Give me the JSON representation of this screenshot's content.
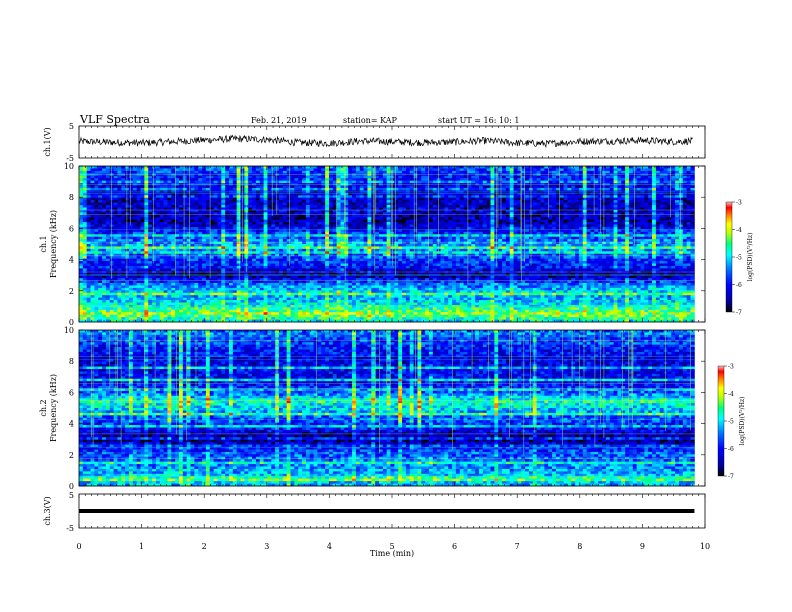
{
  "header": {
    "title": "VLF Spectra",
    "date": "Feb. 21, 2019",
    "station": "station= KAP",
    "start": "start  UT =   16: 10: 1"
  },
  "chart_data": [
    {
      "type": "line",
      "panel": "ch1-waveform",
      "ylabel": "ch.1(V)",
      "ylim": [
        -5,
        5
      ],
      "yticks": [
        "5",
        "-5"
      ],
      "xlim": [
        0,
        10
      ],
      "note_values": "noisy waveform centered near 0 V, amplitude about ±1.5 V",
      "x": [
        0,
        0.5,
        1,
        1.5,
        2,
        2.5,
        3,
        3.5,
        4,
        4.5,
        5,
        5.5,
        6,
        6.5,
        7,
        7.5,
        8,
        8.5,
        9,
        9.5,
        9.8
      ],
      "y": [
        0.2,
        -0.1,
        -0.3,
        0.1,
        0.6,
        1.0,
        0.8,
        -0.2,
        -0.4,
        0.3,
        0.1,
        -0.2,
        0.0,
        0.4,
        -0.3,
        -0.5,
        0.2,
        0.3,
        0.5,
        0.1,
        0.3
      ]
    },
    {
      "type": "heatmap",
      "panel": "ch1-spectrogram",
      "ylabel": "ch.1\nFrequency (kHz)",
      "ylim": [
        0,
        10
      ],
      "yticks": [
        "0",
        "2",
        "4",
        "6",
        "8",
        "10"
      ],
      "xlim": [
        0,
        9.83
      ],
      "colorbar": {
        "label": "log(PSD)(V²/Hz)",
        "range": [
          -7,
          -3
        ],
        "ticks": [
          "-3",
          "-4",
          "-5",
          "-6",
          "-7"
        ]
      },
      "band_profile_kHz": [
        {
          "f": 0.0,
          "v": -5.0
        },
        {
          "f": 0.5,
          "v": -4.3
        },
        {
          "f": 1.0,
          "v": -4.8
        },
        {
          "f": 1.5,
          "v": -5.2
        },
        {
          "f": 2.0,
          "v": -5.1
        },
        {
          "f": 2.5,
          "v": -5.6
        },
        {
          "f": 3.0,
          "v": -6.6
        },
        {
          "f": 3.5,
          "v": -6.0
        },
        {
          "f": 4.0,
          "v": -5.8
        },
        {
          "f": 4.5,
          "v": -5.4
        },
        {
          "f": 5.0,
          "v": -5.3
        },
        {
          "f": 5.5,
          "v": -5.7
        },
        {
          "f": 6.0,
          "v": -6.1
        },
        {
          "f": 6.5,
          "v": -6.5
        },
        {
          "f": 7.0,
          "v": -6.3
        },
        {
          "f": 8.0,
          "v": -6.4
        },
        {
          "f": 9.0,
          "v": -6.0
        },
        {
          "f": 10.0,
          "v": -5.6
        }
      ]
    },
    {
      "type": "heatmap",
      "panel": "ch2-spectrogram",
      "ylabel": "ch.2\nFrequency (kHz)",
      "ylim": [
        0,
        10
      ],
      "yticks": [
        "0",
        "2",
        "4",
        "6",
        "8",
        "10"
      ],
      "xlim": [
        0,
        9.83
      ],
      "colorbar": {
        "label": "log(PSD)(V²/Hz)",
        "range": [
          -7,
          -3
        ],
        "ticks": [
          "-3",
          "-4",
          "-5",
          "-6",
          "-7"
        ]
      },
      "band_profile_kHz": [
        {
          "f": 0.0,
          "v": -5.2
        },
        {
          "f": 0.5,
          "v": -5.0
        },
        {
          "f": 1.0,
          "v": -5.3
        },
        {
          "f": 1.5,
          "v": -5.5
        },
        {
          "f": 2.0,
          "v": -5.6
        },
        {
          "f": 2.5,
          "v": -6.0
        },
        {
          "f": 3.0,
          "v": -6.7
        },
        {
          "f": 3.5,
          "v": -6.2
        },
        {
          "f": 4.0,
          "v": -5.8
        },
        {
          "f": 4.5,
          "v": -5.5
        },
        {
          "f": 5.0,
          "v": -5.0
        },
        {
          "f": 5.5,
          "v": -4.8
        },
        {
          "f": 6.0,
          "v": -5.6
        },
        {
          "f": 6.5,
          "v": -6.0
        },
        {
          "f": 7.0,
          "v": -6.1
        },
        {
          "f": 8.0,
          "v": -6.2
        },
        {
          "f": 9.0,
          "v": -5.9
        },
        {
          "f": 10.0,
          "v": -5.5
        }
      ]
    },
    {
      "type": "line",
      "panel": "ch3-waveform",
      "ylabel": "ch.3(V)",
      "ylim": [
        -5,
        5
      ],
      "yticks": [
        "5",
        "-5"
      ],
      "xlim": [
        0,
        10
      ],
      "xlabel": "Time (min)",
      "xticks": [
        "0",
        "1",
        "2",
        "3",
        "4",
        "5",
        "6",
        "7",
        "8",
        "9",
        "10"
      ],
      "x": [
        0,
        9.83
      ],
      "y": [
        0,
        0
      ]
    }
  ],
  "colors": {
    "colormap": [
      "#000000",
      "#0000a0",
      "#0000ff",
      "#0080ff",
      "#00ffff",
      "#00ff80",
      "#c0ff00",
      "#ffff00",
      "#ff8000",
      "#ff0000",
      "#ffc0c0"
    ]
  }
}
